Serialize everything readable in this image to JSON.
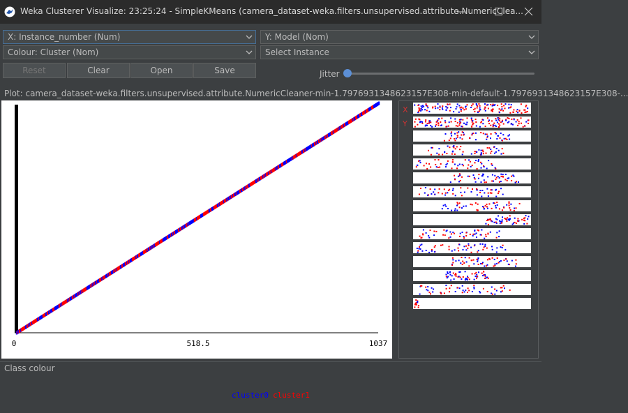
{
  "window": {
    "title": "Weka Clusterer Visualize: 23:25:24 - SimpleKMeans (camera_dataset-weka.filters.unsupervised.attribute.NumericClea...",
    "icons": [
      "weka-bird-icon",
      "minimize-icon",
      "maximize-icon",
      "close-icon"
    ]
  },
  "selectors": {
    "x_axis": "X: Instance_number (Num)",
    "y_axis": "Y: Model (Nom)",
    "colour": "Colour: Cluster (Nom)",
    "instance": "Select Instance"
  },
  "buttons": {
    "reset": "Reset",
    "clear": "Clear",
    "open": "Open",
    "save": "Save"
  },
  "jitter": {
    "label": "Jitter",
    "value": 0
  },
  "plot": {
    "title": "Plot: camera_dataset-weka.filters.unsupervised.attribute.NumericCleaner-min-1.7976931348623157E308-min-default-1.7976931348623157E308-..."
  },
  "chart_data": {
    "type": "scatter",
    "xlabel": "Instance_number",
    "ylabel": "Model",
    "x_ticks": [
      "0",
      "518.5",
      "1037"
    ],
    "xlim": [
      0,
      1037
    ],
    "series": [
      {
        "name": "cluster0",
        "color": "#0000ff",
        "x_range": [
          0,
          1037
        ],
        "pattern": "y rises linearly with x"
      },
      {
        "name": "cluster1",
        "color": "#ff0000",
        "x_range": [
          0,
          1037
        ],
        "pattern": "y rises linearly with x"
      }
    ],
    "attribute_strips": 15,
    "xy_markers": [
      "X",
      "Y"
    ]
  },
  "legend": {
    "title": "Class colour",
    "items": [
      {
        "label": "cluster0",
        "color": "#0000ff"
      },
      {
        "label": "cluster1",
        "color": "#ff0000"
      }
    ]
  }
}
